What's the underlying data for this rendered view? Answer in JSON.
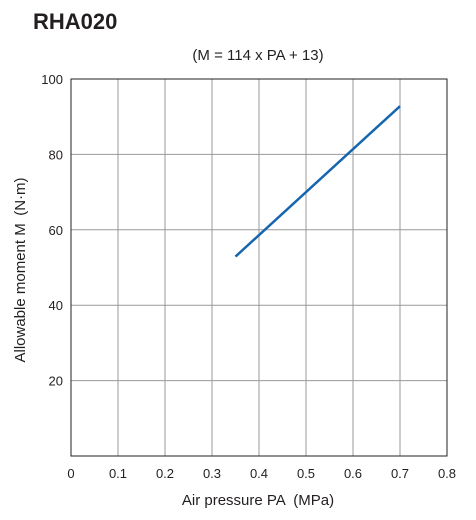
{
  "chart_data": {
    "type": "line",
    "title": "RHA020",
    "subtitle": "(M = 114 x PA + 13)",
    "xlabel": "Air pressure PA (MPa)",
    "ylabel": "Allowable moment M (N·m)",
    "xlim": [
      0,
      0.8
    ],
    "ylim": [
      0,
      100
    ],
    "x_ticks": [
      "0",
      "0.1",
      "0.2",
      "0.3",
      "0.4",
      "0.5",
      "0.6",
      "0.7",
      "0.8"
    ],
    "y_ticks": [
      "20",
      "40",
      "60",
      "80",
      "100"
    ],
    "grid": true,
    "series": [
      {
        "x": [
          0.35,
          0.7
        ],
        "y": [
          52.9,
          92.8
        ],
        "color": "#1565b0"
      }
    ]
  }
}
